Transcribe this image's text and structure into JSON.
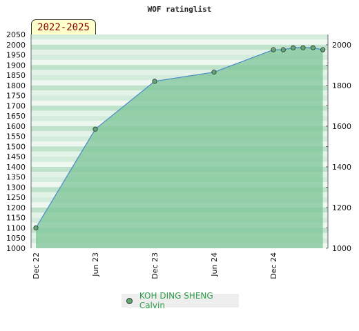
{
  "header": {
    "title": "WOF ratinglist"
  },
  "period_badge": "2022-2025",
  "colors": {
    "line": "#4f8fc7",
    "fill": "#7cc497",
    "marker": "#5fa873",
    "legend_text": "#2e9e4a"
  },
  "chart_data": {
    "type": "area",
    "title": "WOF ratinglist",
    "xlabel": "",
    "ylabel": "",
    "x_tick_labels": [
      "Dec 22",
      "Jun 23",
      "Dec 23",
      "Jun 24",
      "Dec 24"
    ],
    "ylim_left": [
      1000,
      2050
    ],
    "y_ticks_left": [
      2050,
      2000,
      1950,
      1900,
      1850,
      1800,
      1750,
      1700,
      1650,
      1600,
      1550,
      1500,
      1450,
      1400,
      1350,
      1300,
      1250,
      1200,
      1150,
      1100,
      1050,
      1000
    ],
    "ylim_right": [
      1000,
      2000
    ],
    "y_ticks_right": [
      2000,
      1800,
      1600,
      1400,
      1200,
      1000
    ],
    "legend_position": "bottom",
    "series": [
      {
        "name": "KOH DING SHENG Calvin",
        "x": [
          "2022-12",
          "2023-06",
          "2023-12",
          "2024-06",
          "2024-12",
          "2025-01",
          "2025-02",
          "2025-03",
          "2025-04",
          "2025-05"
        ],
        "values": [
          1100,
          1585,
          1820,
          1865,
          1975,
          1975,
          1985,
          1985,
          1985,
          1975
        ]
      }
    ]
  },
  "legend": {
    "label": "KOH DING SHENG Calvin"
  }
}
